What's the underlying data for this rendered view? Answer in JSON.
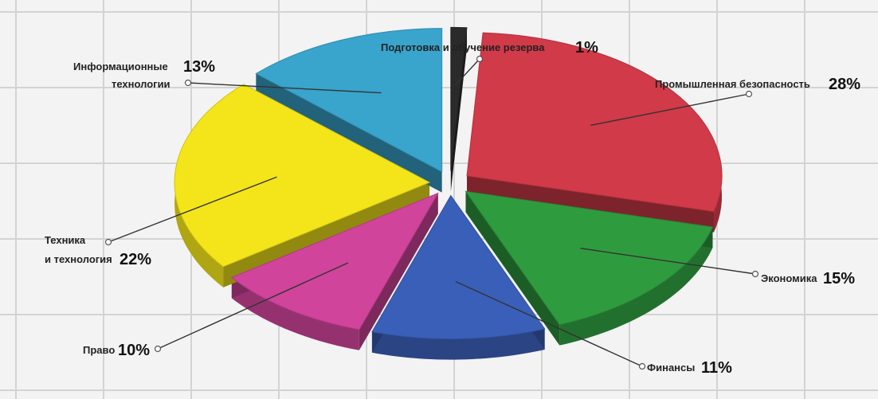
{
  "chart_data": {
    "type": "pie",
    "slices": [
      {
        "label": "Подготовка и обучение резерва",
        "value": 1,
        "value_label": "1%",
        "color": "#2a2a2a"
      },
      {
        "label": "Промышленная безопасность",
        "value": 28,
        "value_label": "28%",
        "color": "#d13a48"
      },
      {
        "label": "Экономика",
        "value": 15,
        "value_label": "15%",
        "color": "#2f9b3f"
      },
      {
        "label": "Финансы",
        "value": 11,
        "value_label": "11%",
        "color": "#3a5fb8"
      },
      {
        "label": "Право",
        "value": 10,
        "value_label": "10%",
        "color": "#d0449b"
      },
      {
        "label": "Техника и технология",
        "value": 22,
        "value_label": "22%",
        "color": "#f4e51a"
      },
      {
        "label": "Информационные технологии",
        "value": 13,
        "value_label": "13%",
        "color": "#39a4cc"
      }
    ],
    "label_lines": {
      "info": [
        "Информационные",
        "технологии"
      ],
      "tech": [
        "Техника",
        "и технология"
      ]
    },
    "grid": true,
    "legend": "labels-around-pie"
  }
}
